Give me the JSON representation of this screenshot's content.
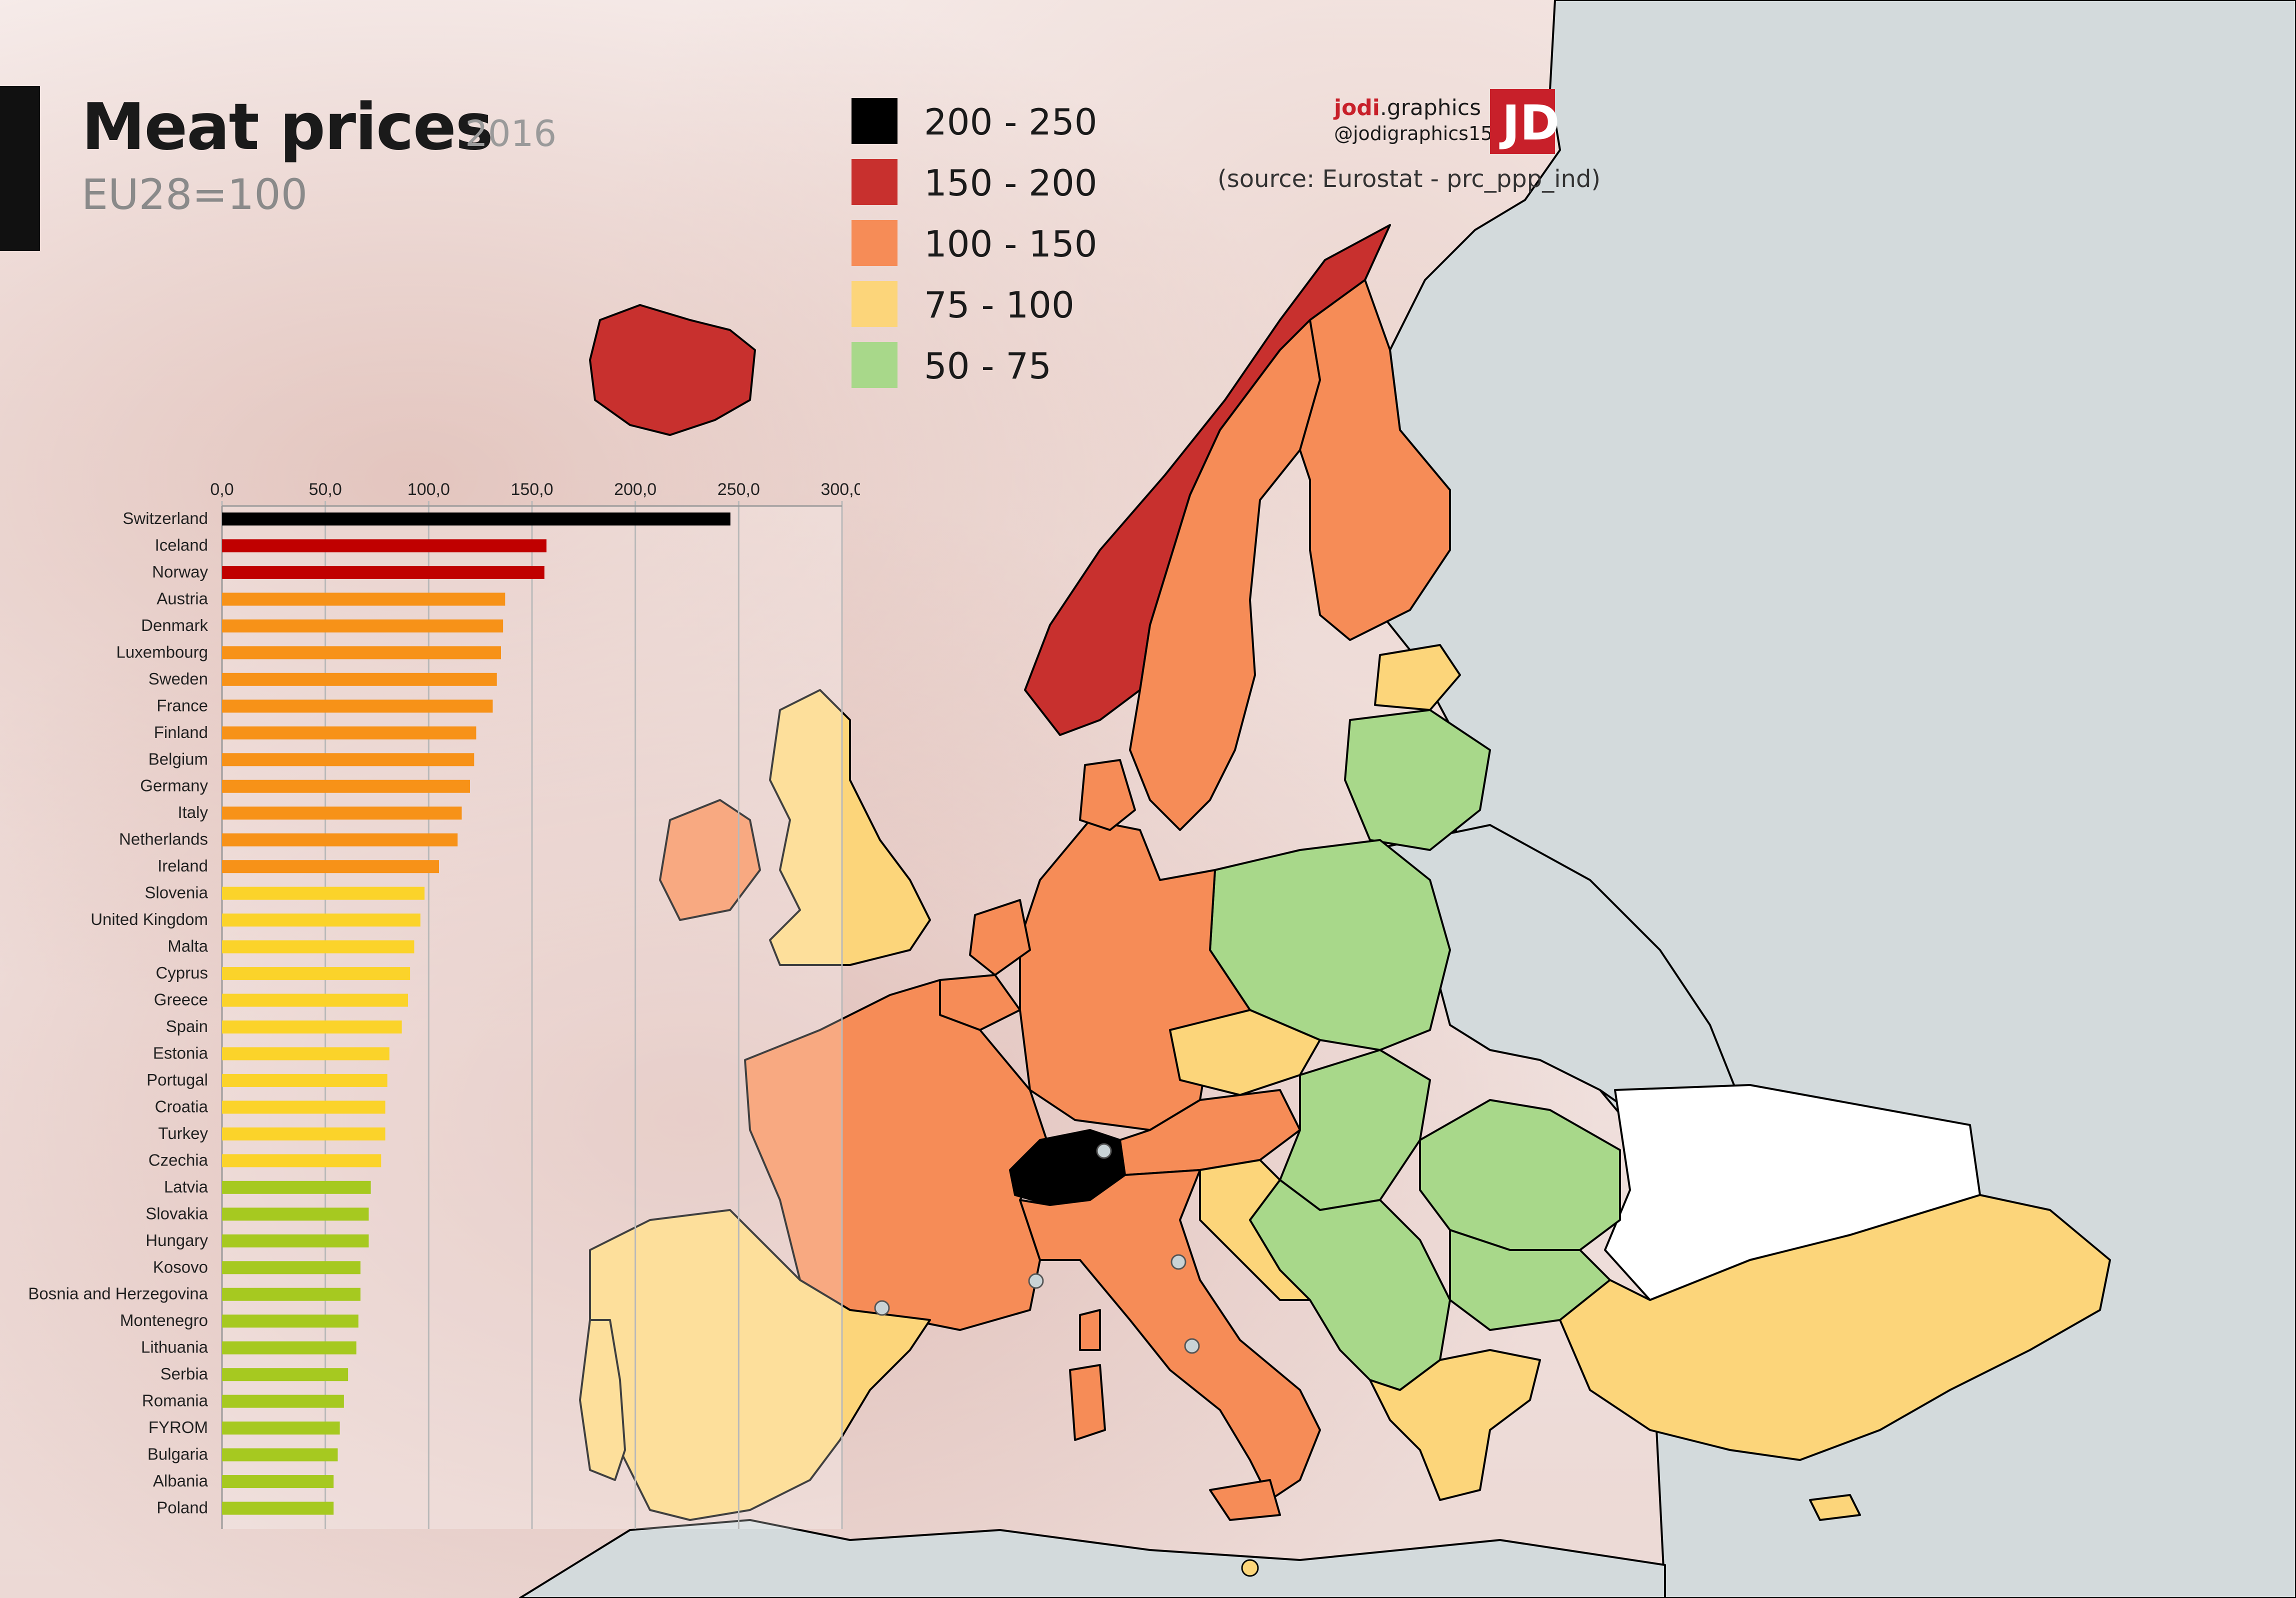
{
  "header": {
    "title": "Meat prices",
    "year": "2016",
    "subtitle": "EU28=100"
  },
  "legend": {
    "items": [
      {
        "label": "200 - 250",
        "color": "#000000"
      },
      {
        "label": "150 - 200",
        "color": "#c8302e"
      },
      {
        "label": "100 - 150",
        "color": "#f68c57"
      },
      {
        "label": "75 - 100",
        "color": "#fcd57a"
      },
      {
        "label": "50 - 75",
        "color": "#a8d88a"
      }
    ]
  },
  "branding": {
    "name_strong": "jodi",
    "name_rest": ".graphics",
    "handle": "@jodigraphics15",
    "logo_text": "JD",
    "source": "(source: Eurostat - prc_ppp_ind)"
  },
  "map": {
    "nonmember_color": "#d3dadc",
    "no_data_color": "#ffffff"
  },
  "chart_data": {
    "type": "bar",
    "orientation": "horizontal",
    "xlim": [
      0,
      300
    ],
    "xticks": [
      "0,0",
      "50,0",
      "100,0",
      "150,0",
      "200,0",
      "250,0",
      "300,0"
    ],
    "grid": true,
    "categories": [
      "Switzerland",
      "Iceland",
      "Norway",
      "Austria",
      "Denmark",
      "Luxembourg",
      "Sweden",
      "France",
      "Finland",
      "Belgium",
      "Germany",
      "Italy",
      "Netherlands",
      "Ireland",
      "Slovenia",
      "United Kingdom",
      "Malta",
      "Cyprus",
      "Greece",
      "Spain",
      "Estonia",
      "Portugal",
      "Croatia",
      "Turkey",
      "Czechia",
      "Latvia",
      "Slovakia",
      "Hungary",
      "Kosovo",
      "Bosnia and Herzegovina",
      "Montenegro",
      "Lithuania",
      "Serbia",
      "Romania",
      "FYROM",
      "Bulgaria",
      "Albania",
      "Poland"
    ],
    "values": [
      246,
      157,
      156,
      137,
      136,
      135,
      133,
      131,
      123,
      122,
      120,
      116,
      114,
      105,
      98,
      96,
      93,
      91,
      90,
      87,
      81,
      80,
      79,
      79,
      77,
      72,
      71,
      71,
      67,
      67,
      66,
      65,
      61,
      59,
      57,
      56,
      54,
      54
    ],
    "bar_colors": [
      "#000000",
      "#c00000",
      "#c00000",
      "#f79218",
      "#f79218",
      "#f79218",
      "#f79218",
      "#f79218",
      "#f79218",
      "#f79218",
      "#f79218",
      "#f79218",
      "#f79218",
      "#f79218",
      "#fbd32a",
      "#fbd32a",
      "#fbd32a",
      "#fbd32a",
      "#fbd32a",
      "#fbd32a",
      "#fbd32a",
      "#fbd32a",
      "#fbd32a",
      "#fbd32a",
      "#fbd32a",
      "#a6c920",
      "#a6c920",
      "#a6c920",
      "#a6c920",
      "#a6c920",
      "#a6c920",
      "#a6c920",
      "#a6c920",
      "#a6c920",
      "#a6c920",
      "#a6c920",
      "#a6c920",
      "#a6c920"
    ]
  }
}
